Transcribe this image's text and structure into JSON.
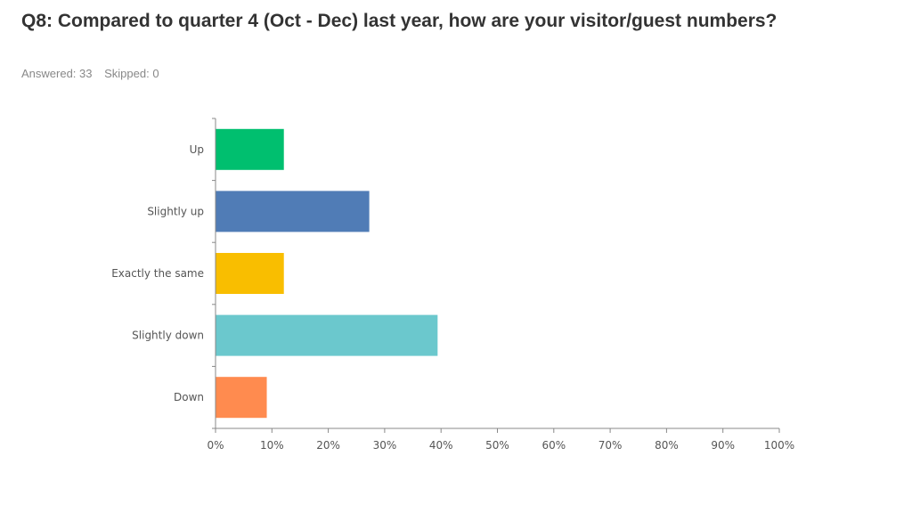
{
  "header": {
    "title": "Q8: Compared to quarter 4 (Oct - Dec) last year, how are your visitor/guest numbers?",
    "answered": "Answered: 33",
    "skipped": "Skipped: 0"
  },
  "chart_data": {
    "type": "bar",
    "orientation": "horizontal",
    "categories": [
      "Up",
      "Slightly up",
      "Exactly the same",
      "Slightly down",
      "Down"
    ],
    "values": [
      12.12,
      27.27,
      12.12,
      39.39,
      9.09
    ],
    "colors": [
      "#00bf6f",
      "#507cb6",
      "#f9be00",
      "#6bc8cd",
      "#ff8b4f"
    ],
    "xlim": [
      0,
      100
    ],
    "xticks": [
      0,
      10,
      20,
      30,
      40,
      50,
      60,
      70,
      80,
      90,
      100
    ],
    "tick_suffix": "%",
    "grid": false
  }
}
